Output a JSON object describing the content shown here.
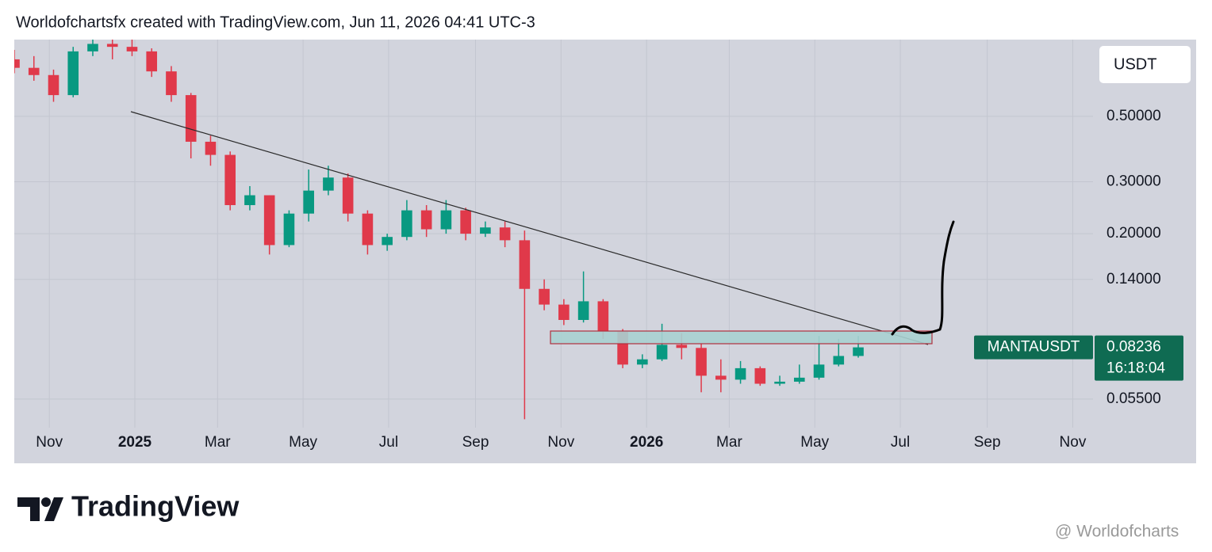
{
  "header": {
    "text": "Worldofchartsfx created with TradingView.com, Jun 11, 2026 04:41 UTC-3"
  },
  "chart_data": {
    "type": "candlestick",
    "currency": "USDT",
    "symbol": "MANTAUSDT",
    "countdown": "16:18:04",
    "log_scale": true,
    "grid": true,
    "up_color": "#089981",
    "down_color": "#e0394a",
    "x": [
      "2024-10-07",
      "2024-10-21",
      "2024-11-04",
      "2024-11-18",
      "2024-12-02",
      "2024-12-16",
      "2024-12-30",
      "2025-01-13",
      "2025-01-27",
      "2025-02-10",
      "2025-02-24",
      "2025-03-10",
      "2025-03-24",
      "2025-04-07",
      "2025-04-21",
      "2025-05-05",
      "2025-05-19",
      "2025-06-02",
      "2025-06-16",
      "2025-06-30",
      "2025-07-14",
      "2025-07-28",
      "2025-08-11",
      "2025-08-25",
      "2025-09-08",
      "2025-09-22",
      "2025-10-06",
      "2025-10-20",
      "2025-11-03",
      "2025-11-17",
      "2025-12-01",
      "2025-12-15",
      "2025-12-29",
      "2026-01-12",
      "2026-01-26",
      "2026-02-09",
      "2026-02-23",
      "2026-03-09",
      "2026-03-23",
      "2026-04-06",
      "2026-04-20",
      "2026-05-04",
      "2026-05-18",
      "2026-06-01"
    ],
    "open": [
      0.78,
      0.73,
      0.69,
      0.59,
      0.83,
      0.88,
      0.86,
      0.83,
      0.71,
      0.59,
      0.41,
      0.37,
      0.25,
      0.27,
      0.183,
      0.234,
      0.28,
      0.31,
      0.234,
      0.183,
      0.195,
      0.24,
      0.207,
      0.24,
      0.2,
      0.21,
      0.19,
      0.13,
      0.115,
      0.102,
      0.118,
      0.093,
      0.072,
      0.075,
      0.084,
      0.082,
      0.066,
      0.064,
      0.07,
      0.062,
      0.063,
      0.065,
      0.072,
      0.077
    ],
    "high": [
      0.84,
      0.8,
      0.72,
      0.86,
      0.95,
      0.93,
      0.92,
      0.85,
      0.74,
      0.6,
      0.43,
      0.38,
      0.29,
      0.27,
      0.24,
      0.33,
      0.34,
      0.32,
      0.24,
      0.2,
      0.26,
      0.25,
      0.26,
      0.245,
      0.22,
      0.22,
      0.205,
      0.14,
      0.12,
      0.149,
      0.12,
      0.095,
      0.078,
      0.099,
      0.092,
      0.085,
      0.075,
      0.074,
      0.071,
      0.066,
      0.072,
      0.09,
      0.088,
      0.09
    ],
    "low": [
      0.7,
      0.66,
      0.56,
      0.58,
      0.8,
      0.78,
      0.8,
      0.68,
      0.56,
      0.36,
      0.34,
      0.24,
      0.24,
      0.17,
      0.18,
      0.22,
      0.27,
      0.22,
      0.17,
      0.175,
      0.19,
      0.195,
      0.2,
      0.19,
      0.195,
      0.18,
      0.047,
      0.11,
      0.098,
      0.1,
      0.088,
      0.07,
      0.07,
      0.074,
      0.075,
      0.058,
      0.058,
      0.062,
      0.061,
      0.061,
      0.062,
      0.064,
      0.071,
      0.076
    ],
    "close": [
      0.73,
      0.69,
      0.59,
      0.83,
      0.88,
      0.86,
      0.83,
      0.71,
      0.59,
      0.41,
      0.37,
      0.25,
      0.27,
      0.183,
      0.234,
      0.28,
      0.31,
      0.234,
      0.183,
      0.195,
      0.24,
      0.207,
      0.24,
      0.2,
      0.21,
      0.19,
      0.13,
      0.115,
      0.102,
      0.118,
      0.093,
      0.072,
      0.075,
      0.084,
      0.082,
      0.066,
      0.064,
      0.07,
      0.062,
      0.063,
      0.065,
      0.072,
      0.077,
      0.08236
    ],
    "xlim": [
      "2024-10-07",
      "2027-01-28"
    ],
    "xticks": [
      {
        "value": "2024-11",
        "label": "Nov"
      },
      {
        "value": "2025-01",
        "label": "2025"
      },
      {
        "value": "2025-03",
        "label": "Mar"
      },
      {
        "value": "2025-05",
        "label": "May"
      },
      {
        "value": "2025-07",
        "label": "Jul"
      },
      {
        "value": "2025-09",
        "label": "Sep"
      },
      {
        "value": "2025-11",
        "label": "Nov"
      },
      {
        "value": "2026-01",
        "label": "2026"
      },
      {
        "value": "2026-03",
        "label": "Mar"
      },
      {
        "value": "2026-05",
        "label": "May"
      },
      {
        "value": "2026-07",
        "label": "Jul"
      },
      {
        "value": "2026-09",
        "label": "Sep"
      },
      {
        "value": "2026-11",
        "label": "Nov"
      }
    ],
    "ylim": [
      0.044,
      0.91
    ],
    "yticks": [
      {
        "value": 0.5,
        "label": "0.50000"
      },
      {
        "value": 0.3,
        "label": "0.30000"
      },
      {
        "value": 0.2,
        "label": "0.20000"
      },
      {
        "value": 0.14,
        "label": "0.14000"
      },
      {
        "value": 0.055,
        "label": "0.05500"
      }
    ]
  },
  "footer": {
    "brand": "TradingView",
    "watermark": "@ Worldofcharts"
  }
}
